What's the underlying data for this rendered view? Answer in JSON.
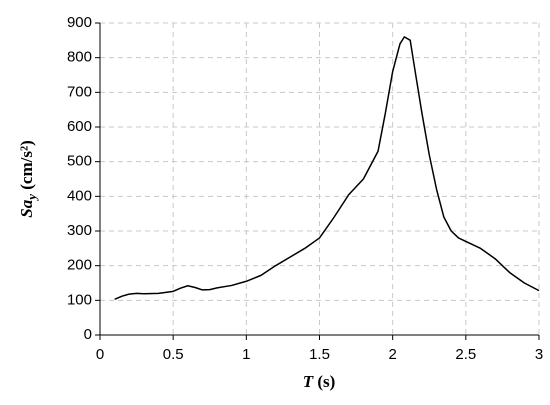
{
  "chart_data": {
    "type": "line",
    "xlabel": {
      "symbol": "T",
      "unit": "(s)"
    },
    "ylabel": {
      "symbol": "Sa",
      "subscript": "y",
      "unit": "(cm/s²)"
    },
    "x": [
      0.1,
      0.15,
      0.2,
      0.25,
      0.3,
      0.4,
      0.5,
      0.55,
      0.6,
      0.65,
      0.7,
      0.75,
      0.8,
      0.9,
      1.0,
      1.1,
      1.2,
      1.3,
      1.4,
      1.5,
      1.6,
      1.7,
      1.8,
      1.9,
      1.95,
      2.0,
      2.05,
      2.08,
      2.12,
      2.15,
      2.2,
      2.25,
      2.3,
      2.35,
      2.4,
      2.45,
      2.5,
      2.6,
      2.7,
      2.8,
      2.9,
      3.0
    ],
    "series": [
      {
        "color": "#000000",
        "values": [
          103,
          112,
          118,
          120,
          119,
          120,
          126,
          135,
          142,
          137,
          130,
          131,
          136,
          143,
          155,
          172,
          200,
          225,
          250,
          280,
          340,
          405,
          450,
          530,
          640,
          760,
          840,
          860,
          850,
          770,
          640,
          520,
          420,
          340,
          300,
          280,
          270,
          250,
          220,
          180,
          150,
          128
        ]
      }
    ],
    "xlim": [
      0,
      3
    ],
    "xticks": [
      0,
      0.5,
      1,
      1.5,
      2,
      2.5,
      3
    ],
    "ylim": [
      0,
      900
    ],
    "yticks": [
      0,
      100,
      200,
      300,
      400,
      500,
      600,
      700,
      800,
      900
    ],
    "grid": true
  }
}
